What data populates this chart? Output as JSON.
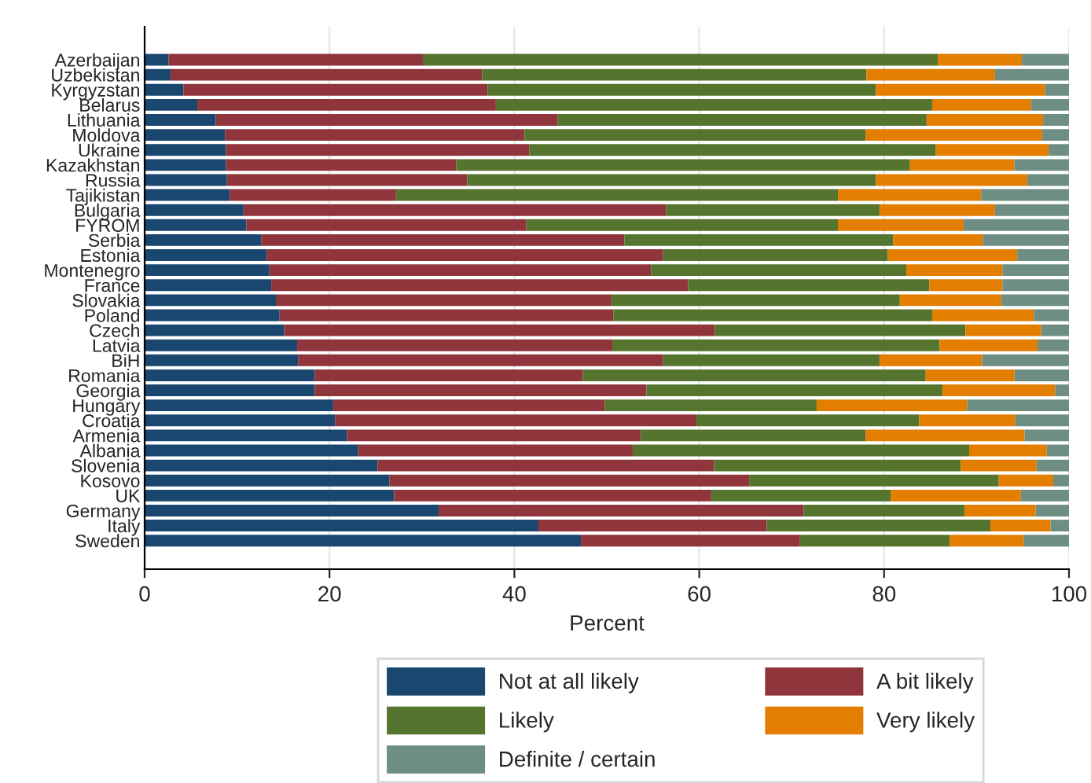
{
  "chart_data": {
    "type": "bar",
    "orientation": "horizontal",
    "stacked": true,
    "xlabel": "Percent",
    "xlim": [
      0,
      100
    ],
    "xticks": [
      0,
      20,
      40,
      60,
      80,
      100
    ],
    "grid": "x",
    "legend": "bottom",
    "categories": [
      "Azerbaijan",
      "Uzbekistan",
      "Kyrgyzstan",
      "Belarus",
      "Lithuania",
      "Moldova",
      "Ukraine",
      "Kazakhstan",
      "Russia",
      "Tajikistan",
      "Bulgaria",
      "FYROM",
      "Serbia",
      "Estonia",
      "Montenegro",
      "France",
      "Slovakia",
      "Poland",
      "Czech",
      "Latvia",
      "BiH",
      "Romania",
      "Georgia",
      "Hungary",
      "Croatia",
      "Armenia",
      "Albania",
      "Slovenia",
      "Kosovo",
      "UK",
      "Germany",
      "Italy",
      "Sweden"
    ],
    "series": [
      {
        "name": "Not at all likely",
        "color": "#1a476f",
        "values": [
          2.6,
          2.8,
          4.2,
          5.7,
          7.7,
          8.7,
          8.8,
          8.8,
          8.9,
          9.2,
          10.7,
          11.0,
          12.6,
          13.2,
          13.5,
          13.7,
          14.2,
          14.6,
          15.1,
          16.5,
          16.6,
          18.4,
          18.4,
          20.4,
          20.6,
          21.9,
          23.1,
          25.2,
          26.5,
          27.0,
          31.8,
          42.6,
          47.2
        ]
      },
      {
        "name": "A bit likely",
        "color": "#90353b",
        "values": [
          27.5,
          33.7,
          32.9,
          32.3,
          37.0,
          32.4,
          32.8,
          24.9,
          26.0,
          18.0,
          45.7,
          30.3,
          39.3,
          42.9,
          41.3,
          45.1,
          36.3,
          36.1,
          46.6,
          34.1,
          39.5,
          29.0,
          35.9,
          29.4,
          39.1,
          31.8,
          29.7,
          36.4,
          38.9,
          34.3,
          39.5,
          24.7,
          23.7
        ]
      },
      {
        "name": "Likely",
        "color": "#55752f",
        "values": [
          55.7,
          41.6,
          42.0,
          47.2,
          39.9,
          36.9,
          44.0,
          49.1,
          44.2,
          47.8,
          23.1,
          33.7,
          29.1,
          24.3,
          27.6,
          26.1,
          31.2,
          34.5,
          27.1,
          35.4,
          23.4,
          37.1,
          32.0,
          22.9,
          24.1,
          24.3,
          36.4,
          26.7,
          27.0,
          19.4,
          17.4,
          24.2,
          16.2
        ]
      },
      {
        "name": "Very likely",
        "color": "#e37e00",
        "values": [
          9.1,
          13.9,
          18.3,
          10.7,
          12.6,
          19.1,
          12.2,
          11.3,
          16.4,
          15.5,
          12.5,
          13.6,
          9.7,
          14.0,
          10.4,
          7.9,
          11.0,
          11.0,
          8.2,
          10.6,
          11.1,
          9.6,
          12.2,
          16.3,
          10.4,
          17.2,
          8.4,
          8.2,
          5.9,
          14.1,
          7.7,
          6.5,
          8.0
        ]
      },
      {
        "name": "Definite / certain",
        "color": "#6e8e84",
        "values": [
          5.1,
          8.0,
          2.6,
          4.1,
          2.8,
          2.9,
          2.2,
          5.9,
          4.5,
          9.5,
          8.0,
          11.4,
          9.3,
          5.6,
          7.2,
          7.2,
          7.3,
          3.8,
          3.0,
          3.4,
          9.4,
          5.9,
          1.5,
          11.0,
          5.8,
          4.8,
          2.4,
          3.5,
          1.7,
          5.2,
          3.6,
          2.0,
          4.9
        ]
      }
    ]
  }
}
